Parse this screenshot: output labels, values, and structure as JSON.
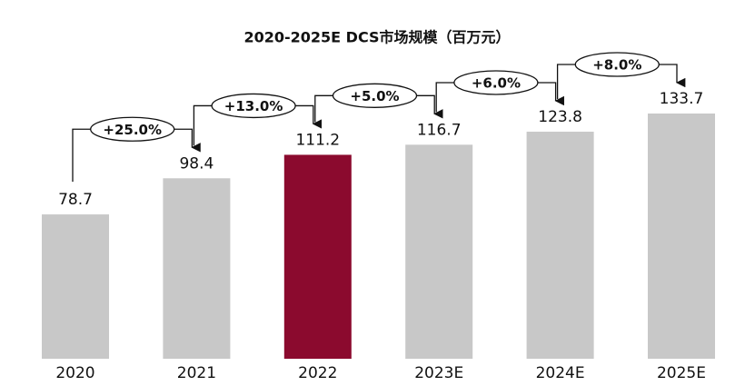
{
  "chart_data": {
    "type": "bar",
    "title": "2020-2025E DCS市场规模（百万元）",
    "categories": [
      "2020",
      "2021",
      "2022",
      "2023E",
      "2024E",
      "2025E"
    ],
    "values": [
      78.7,
      98.4,
      111.2,
      116.7,
      123.8,
      133.7
    ],
    "colors": [
      "#c8c8c8",
      "#c8c8c8",
      "#8b0a2e",
      "#c8c8c8",
      "#c8c8c8",
      "#c8c8c8"
    ],
    "growth_labels": [
      "+25.0%",
      "+13.0%",
      "+5.0%",
      "+6.0%",
      "+8.0%"
    ]
  }
}
